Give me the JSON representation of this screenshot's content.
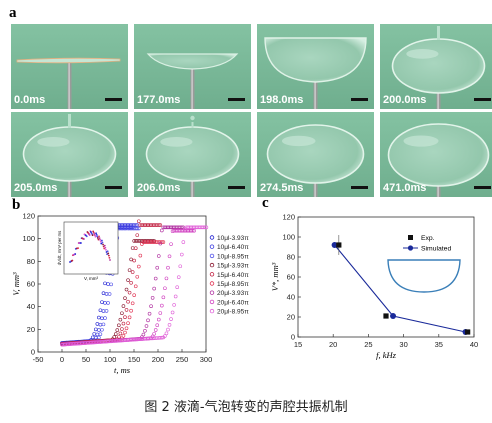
{
  "panel_labels": {
    "a": "a",
    "b": "b",
    "c": "c"
  },
  "photo_frames": [
    {
      "time": "0.0ms",
      "stage": "flat"
    },
    {
      "time": "177.0ms",
      "stage": "dish"
    },
    {
      "time": "198.0ms",
      "stage": "bowl"
    },
    {
      "time": "200.0ms",
      "stage": "bubble-tail"
    },
    {
      "time": "205.0ms",
      "stage": "bubble-tail"
    },
    {
      "time": "206.0ms",
      "stage": "bubble-detach"
    },
    {
      "time": "274.5ms",
      "stage": "bubble"
    },
    {
      "time": "471.0ms",
      "stage": "bubble-large"
    }
  ],
  "colors": {
    "photo_bg": "#7ebc9c",
    "photo_bg_dark": "#5f9f80",
    "drop": "#b8dfcb",
    "needle": "#8d8d8d"
  },
  "chart_data": [
    {
      "type": "scatter",
      "panel": "b",
      "ylabel": "V, mm³",
      "xlabel": "t, ms",
      "xlim": [
        -50,
        300
      ],
      "ylim": [
        0,
        120
      ],
      "xticks": [
        "-50",
        "0",
        "50",
        "100",
        "150",
        "200",
        "250",
        "300"
      ],
      "yticks": [
        "0",
        "20",
        "40",
        "60",
        "80",
        "100",
        "120"
      ],
      "legend_position": "right",
      "series": [
        {
          "name": "10μl-3.93π",
          "color": "#2020d0",
          "rise_t": 105,
          "plateau": 110
        },
        {
          "name": "10μl-6.40π",
          "color": "#3a3adf",
          "rise_t": 112,
          "plateau": 112
        },
        {
          "name": "10μl-8.95π",
          "color": "#5050e8",
          "rise_t": 118,
          "plateau": 109
        },
        {
          "name": "15μl-3.93π",
          "color": "#8a1830",
          "rise_t": 150,
          "plateau": 98
        },
        {
          "name": "15μl-6.40π",
          "color": "#c02040",
          "rise_t": 160,
          "plateau": 112
        },
        {
          "name": "15μl-8.95π",
          "color": "#e03050",
          "rise_t": 168,
          "plateau": 97
        },
        {
          "name": "20μl-3.93π",
          "color": "#b030a0",
          "rise_t": 210,
          "plateau": 110
        },
        {
          "name": "20μl-6.40π",
          "color": "#d040c0",
          "rise_t": 232,
          "plateau": 107
        },
        {
          "name": "20μl-8.95π",
          "color": "#e060d8",
          "rise_t": 258,
          "plateau": 110
        }
      ],
      "inset": {
        "ylabel": "dV/dt, mm³ per ms",
        "xlabel": "V, mm³"
      }
    },
    {
      "type": "line",
      "panel": "c",
      "ylabel": "V*, mm³",
      "xlabel": "f, kHz",
      "xlim": [
        15,
        40
      ],
      "ylim": [
        0,
        120
      ],
      "xticks": [
        "15",
        "20",
        "25",
        "30",
        "35",
        "40"
      ],
      "yticks": [
        "0",
        "20",
        "40",
        "60",
        "80",
        "100",
        "120"
      ],
      "legend_position": "top-right",
      "series": [
        {
          "name": "Exp.",
          "marker": "square",
          "color": "#111111",
          "x": [
            20.8,
            27.5,
            39.1
          ],
          "y": [
            92,
            21,
            5
          ],
          "err": [
            10,
            2,
            1
          ]
        },
        {
          "name": "Simulated",
          "marker": "circle",
          "color": "#1a2a9a",
          "x": [
            20.2,
            28.5,
            38.8
          ],
          "y": [
            92,
            21,
            5
          ]
        }
      ]
    }
  ],
  "caption": "图 2  液滴-气泡转变的声腔共振机制"
}
